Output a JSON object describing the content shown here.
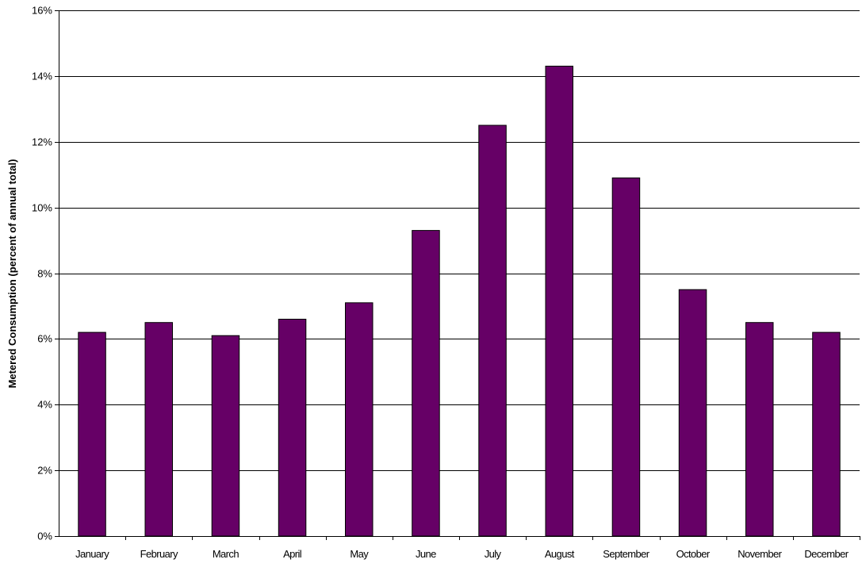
{
  "chart_data": {
    "type": "bar",
    "title": "",
    "xlabel": "",
    "ylabel": "Metered Consumption (percent of annual total)",
    "categories": [
      "January",
      "February",
      "March",
      "April",
      "May",
      "June",
      "July",
      "August",
      "September",
      "October",
      "November",
      "December"
    ],
    "values": [
      6.2,
      6.5,
      6.1,
      6.6,
      7.1,
      9.3,
      12.5,
      14.3,
      10.9,
      7.5,
      6.5,
      6.2
    ],
    "ylim": [
      0,
      16
    ],
    "yticks": [
      0,
      2,
      4,
      6,
      8,
      10,
      12,
      14,
      16
    ],
    "ytick_labels": [
      "0%",
      "2%",
      "4%",
      "6%",
      "8%",
      "10%",
      "12%",
      "14%",
      "16%"
    ],
    "grid": "horizontal",
    "legend": "none",
    "bar_color": "#660066"
  }
}
